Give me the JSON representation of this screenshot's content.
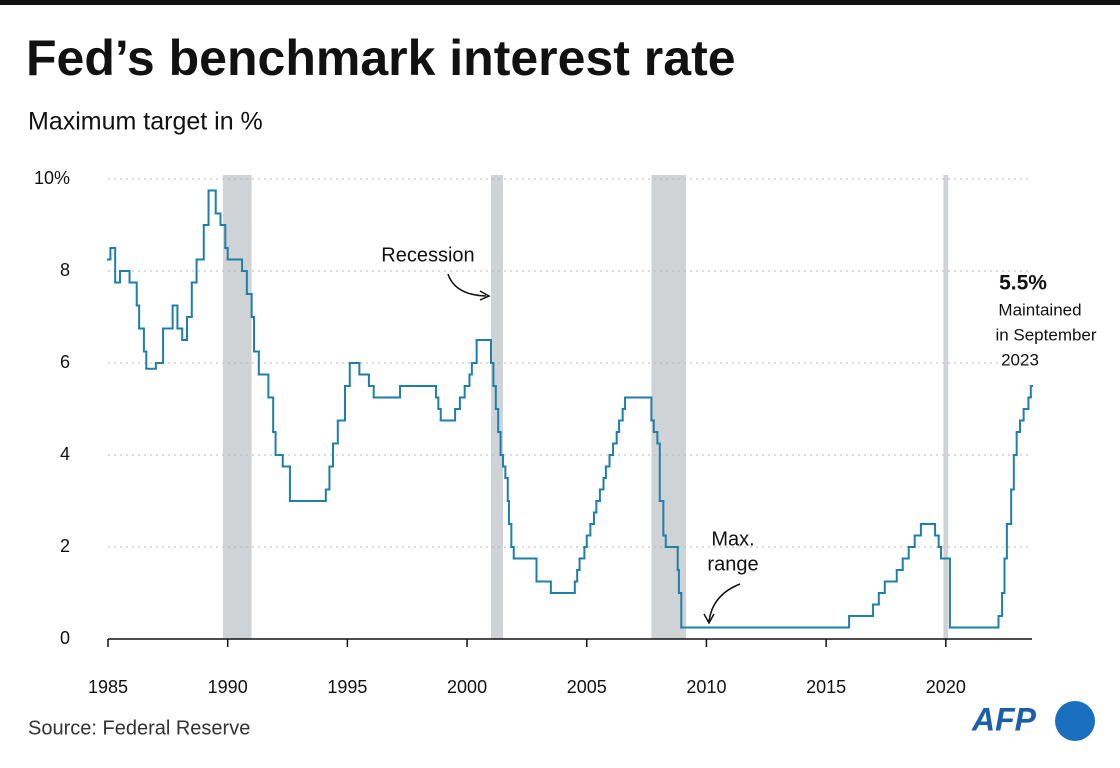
{
  "chart_data": {
    "type": "line",
    "step": true,
    "title": "Fed’s benchmark interest rate",
    "subtitle": "Maximum target in %",
    "source": "Source: Federal Reserve",
    "logo": "AFP",
    "color": "#1f7fa8",
    "grid": true,
    "xlim": [
      1985,
      2023.6
    ],
    "ylim": [
      0,
      10
    ],
    "xticks": [
      1985,
      1990,
      1995,
      2000,
      2005,
      2010,
      2015,
      2020
    ],
    "yticks": [
      0,
      2,
      4,
      6,
      8,
      {
        "value": 10,
        "label": "10%"
      }
    ],
    "shaded_periods": {
      "name": "Recession",
      "color": "#d0d3d6",
      "ranges": [
        [
          1989.8,
          1991.0
        ],
        [
          2001.0,
          2001.5
        ],
        [
          2007.7,
          2009.15
        ],
        [
          2019.9,
          2020.1
        ]
      ]
    },
    "x": [
      1985.0,
      1985.1,
      1985.3,
      1985.5,
      1985.9,
      1986.2,
      1986.3,
      1986.5,
      1986.6,
      1987.0,
      1987.3,
      1987.7,
      1987.9,
      1988.1,
      1988.3,
      1988.5,
      1988.7,
      1989.0,
      1989.2,
      1989.5,
      1989.7,
      1989.9,
      1990.0,
      1990.6,
      1990.8,
      1991.0,
      1991.1,
      1991.3,
      1991.7,
      1991.9,
      1992.0,
      1992.3,
      1992.6,
      1994.1,
      1994.25,
      1994.4,
      1994.6,
      1994.9,
      1995.1,
      1995.5,
      1995.9,
      1996.1,
      1997.2,
      1998.7,
      1998.8,
      1998.9,
      1999.5,
      1999.7,
      1999.9,
      2000.1,
      2000.2,
      2000.4,
      2001.0,
      2001.1,
      2001.2,
      2001.3,
      2001.4,
      2001.5,
      2001.6,
      2001.7,
      2001.75,
      2001.85,
      2001.95,
      2002.9,
      2003.5,
      2004.5,
      2004.6,
      2004.7,
      2004.9,
      2005.0,
      2005.15,
      2005.3,
      2005.4,
      2005.55,
      2005.7,
      2005.8,
      2005.95,
      2006.1,
      2006.25,
      2006.35,
      2006.5,
      2006.6,
      2007.7,
      2007.8,
      2007.95,
      2008.05,
      2008.2,
      2008.3,
      2008.8,
      2008.85,
      2008.95,
      2015.96,
      2016.96,
      2017.2,
      2017.45,
      2017.95,
      2018.2,
      2018.45,
      2018.7,
      2018.96,
      2019.55,
      2019.7,
      2019.8,
      2020.17,
      2022.2,
      2022.35,
      2022.45,
      2022.55,
      2022.73,
      2022.84,
      2022.96,
      2023.1,
      2023.25,
      2023.45,
      2023.55
    ],
    "values": [
      8.25,
      8.5,
      7.75,
      8.0,
      7.75,
      7.25,
      6.75,
      6.25,
      5.875,
      6.0,
      6.75,
      7.25,
      6.75,
      6.5,
      7.0,
      7.75,
      8.25,
      9.0,
      9.75,
      9.25,
      9.0,
      8.5,
      8.25,
      8.0,
      7.5,
      7.0,
      6.25,
      5.75,
      5.25,
      4.5,
      4.0,
      3.75,
      3.0,
      3.25,
      3.75,
      4.25,
      4.75,
      5.5,
      6.0,
      5.75,
      5.5,
      5.25,
      5.5,
      5.25,
      5.0,
      4.75,
      5.0,
      5.25,
      5.5,
      5.75,
      6.0,
      6.5,
      6.0,
      5.5,
      5.0,
      4.5,
      4.0,
      3.75,
      3.5,
      3.0,
      2.5,
      2.0,
      1.75,
      1.25,
      1.0,
      1.25,
      1.5,
      1.75,
      2.0,
      2.25,
      2.5,
      2.75,
      3.0,
      3.25,
      3.5,
      3.75,
      4.0,
      4.25,
      4.5,
      4.75,
      5.0,
      5.25,
      4.75,
      4.5,
      4.25,
      3.0,
      2.25,
      2.0,
      1.5,
      1.0,
      0.25,
      0.5,
      0.75,
      1.0,
      1.25,
      1.5,
      1.75,
      2.0,
      2.25,
      2.5,
      2.25,
      2.0,
      1.75,
      0.25,
      0.5,
      1.0,
      1.75,
      2.5,
      3.25,
      4.0,
      4.5,
      4.75,
      5.0,
      5.25,
      5.5
    ],
    "annotations": {
      "recession": "Recession",
      "max_range": [
        "Max.",
        "range"
      ],
      "latest_value": {
        "value": 5.5,
        "label": "5.5%"
      },
      "latest_note": [
        "Maintained",
        "in September",
        "2023"
      ]
    }
  }
}
